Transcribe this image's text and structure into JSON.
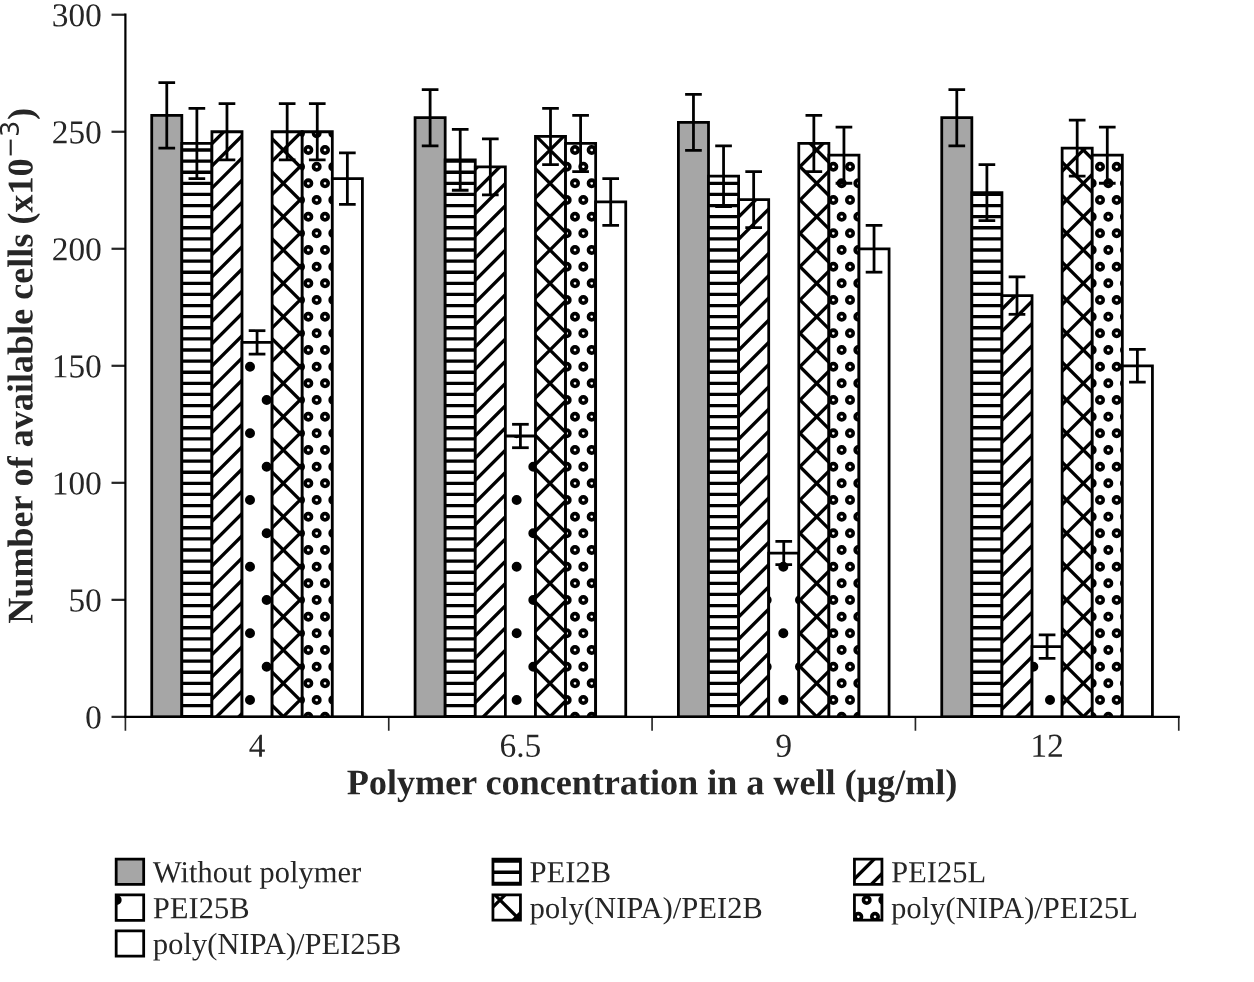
{
  "chart_data": {
    "type": "bar",
    "xlabel": "Polymer concentration in a well (μg/ml)",
    "ylabel": "Number of available cells (x10$^{−3}$)",
    "categories": [
      "4",
      "6.5",
      "9",
      "12"
    ],
    "ylim": [
      0,
      300
    ],
    "yticks": [
      0,
      50,
      100,
      150,
      200,
      250,
      300
    ],
    "grid": false,
    "legend": "bottom",
    "series": [
      {
        "name": "Without polymer",
        "color": "#a6a6a6",
        "values": [
          257,
          256,
          254,
          256
        ],
        "errors": [
          14,
          12,
          12,
          12
        ]
      },
      {
        "name": "PEI2B",
        "color": "#000000",
        "values": [
          245,
          238,
          231,
          224
        ],
        "errors": [
          15,
          13,
          13,
          12
        ]
      },
      {
        "name": "PEI25L",
        "color": "#000000",
        "values": [
          250,
          235,
          221,
          180
        ],
        "errors": [
          12,
          12,
          12,
          8
        ]
      },
      {
        "name": "PEI25B",
        "color": "#000000",
        "values": [
          160,
          120,
          70,
          30
        ],
        "errors": [
          5,
          5,
          5,
          5
        ]
      },
      {
        "name": "poly(NIPA)/PEI2B",
        "color": "#000000",
        "values": [
          250,
          248,
          245,
          243
        ],
        "errors": [
          12,
          12,
          12,
          12
        ]
      },
      {
        "name": "poly(NIPA)/PEI25L",
        "color": "#000000",
        "values": [
          250,
          245,
          240,
          240
        ],
        "errors": [
          12,
          12,
          12,
          12
        ]
      },
      {
        "name": "poly(NIPA)/PEI25B",
        "color": "#ffffff",
        "values": [
          230,
          220,
          200,
          150
        ],
        "errors": [
          11,
          10,
          10,
          7
        ]
      }
    ]
  }
}
